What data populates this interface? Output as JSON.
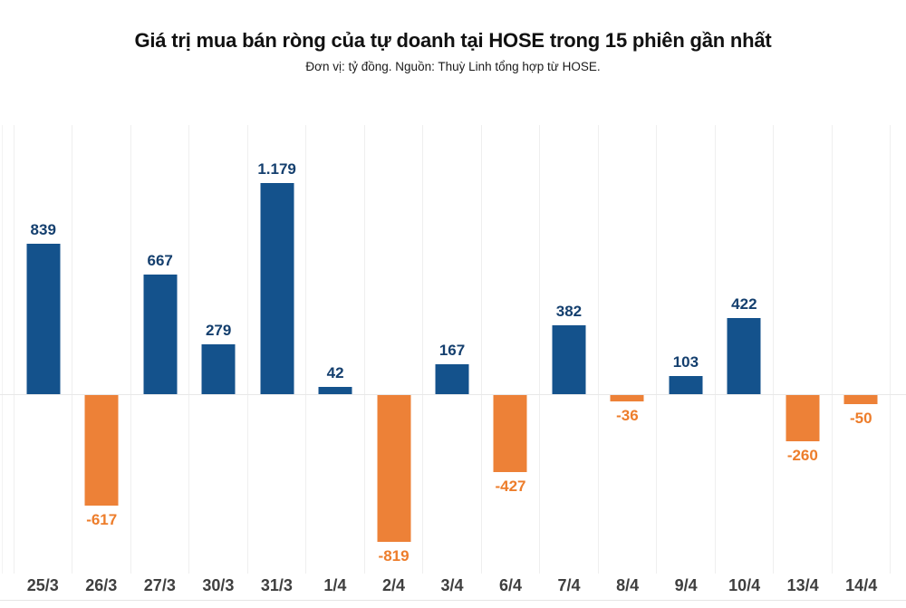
{
  "chart_data": {
    "type": "bar",
    "title": "Giá trị mua bán ròng của tự doanh tại HOSE trong 15 phiên gần nhất",
    "subtitle": "Đơn vị: tỷ đồng. Nguồn: Thuỳ Linh tổng hợp từ HOSE.",
    "categories": [
      "25/3",
      "26/3",
      "27/3",
      "30/3",
      "31/3",
      "1/4",
      "2/4",
      "3/4",
      "6/4",
      "7/4",
      "8/4",
      "9/4",
      "10/4",
      "13/4",
      "14/4"
    ],
    "values": [
      839,
      -617,
      667,
      279,
      1179,
      42,
      -819,
      167,
      -427,
      382,
      -36,
      103,
      422,
      -260,
      -50
    ],
    "value_labels": [
      "839",
      "-617",
      "667",
      "279",
      "1.179",
      "42",
      "-819",
      "167",
      "-427",
      "382",
      "-36",
      "103",
      "422",
      "-260",
      "-50"
    ],
    "xlabel": "",
    "ylabel": "",
    "ylim": [
      -1000,
      1500
    ],
    "grid": "vertical-only",
    "legend": "none",
    "colors": {
      "positive_bar": "#14528C",
      "negative_bar": "#ED8137",
      "positive_label": "#143F6E",
      "negative_label": "#ED7D2B",
      "axis_label": "#3F3F3F",
      "gridline": "#EFEFEF",
      "zero_line": "#E8E8E8",
      "baseline": "#E6E6E6"
    }
  }
}
